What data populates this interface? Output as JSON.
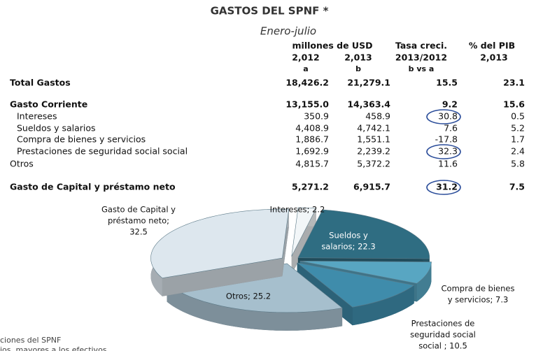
{
  "header": {
    "title": "GASTOS DEL SPNF *",
    "subtitle": "Enero-julio"
  },
  "table": {
    "headers": {
      "group": "millones de USD",
      "rate": "Tasa creci.",
      "gdp": "% del PIB",
      "row2": [
        "2,012",
        "2,013",
        "2013/2012",
        "2,013"
      ],
      "row3": [
        "a",
        "b",
        "b vs a"
      ]
    },
    "rows": [
      {
        "label": "Total Gastos",
        "cells": [
          "18,426.2",
          "21,279.1",
          "15.5",
          "23.1"
        ],
        "bold": true
      },
      {
        "label": "Gasto Corriente",
        "cells": [
          "13,155.0",
          "14,363.4",
          "9.2",
          "15.6"
        ],
        "bold": true
      },
      {
        "label": "Intereses",
        "cells": [
          "350.9",
          "458.9",
          "30.8",
          "0.5"
        ],
        "indent": true,
        "circled": 2
      },
      {
        "label": "Sueldos y salarios",
        "cells": [
          "4,408.9",
          "4,742.1",
          "7.6",
          "5.2"
        ],
        "indent": true
      },
      {
        "label": "Compra de bienes y servicios",
        "cells": [
          "1,886.7",
          "1,551.1",
          "-17.8",
          "1.7"
        ],
        "indent": true
      },
      {
        "label": "Prestaciones de seguridad social social",
        "cells": [
          "1,692.9",
          "2,239.2",
          "32.3",
          "2.4"
        ],
        "indent": true,
        "circled": 2
      },
      {
        "label": "Otros",
        "cells": [
          "4,815.7",
          "5,372.2",
          "11.6",
          "5.8"
        ]
      },
      {
        "label": "Gasto de Capital y préstamo neto",
        "cells": [
          "5,271.2",
          "6,915.7",
          "31.2",
          "7.5"
        ],
        "bold": true,
        "circled": 2
      }
    ]
  },
  "chart_data": {
    "type": "pie",
    "values": [
      2.2,
      22.3,
      7.3,
      10.5,
      25.2,
      32.5
    ],
    "value_labels": [
      [
        "Intereses; 2.2"
      ],
      [
        "Sueldos y",
        "salarios; 22.3"
      ],
      [
        "Compra de bienes",
        "y servicios; 7.3"
      ],
      [
        "Prestaciones de",
        "seguridad social",
        "social ; 10.5"
      ],
      [
        "Otros; 25.2"
      ],
      [
        "Gasto de Capital y",
        "préstamo neto;",
        "32.5"
      ]
    ],
    "colors": [
      "#f2f6f8",
      "#2f6d82",
      "#58a6c2",
      "#3f8cab",
      "#a6bfcd",
      "#dde7ee"
    ]
  },
  "footer": [
    "ciones del SPNF",
    "ios, mayores a los efectivos"
  ]
}
